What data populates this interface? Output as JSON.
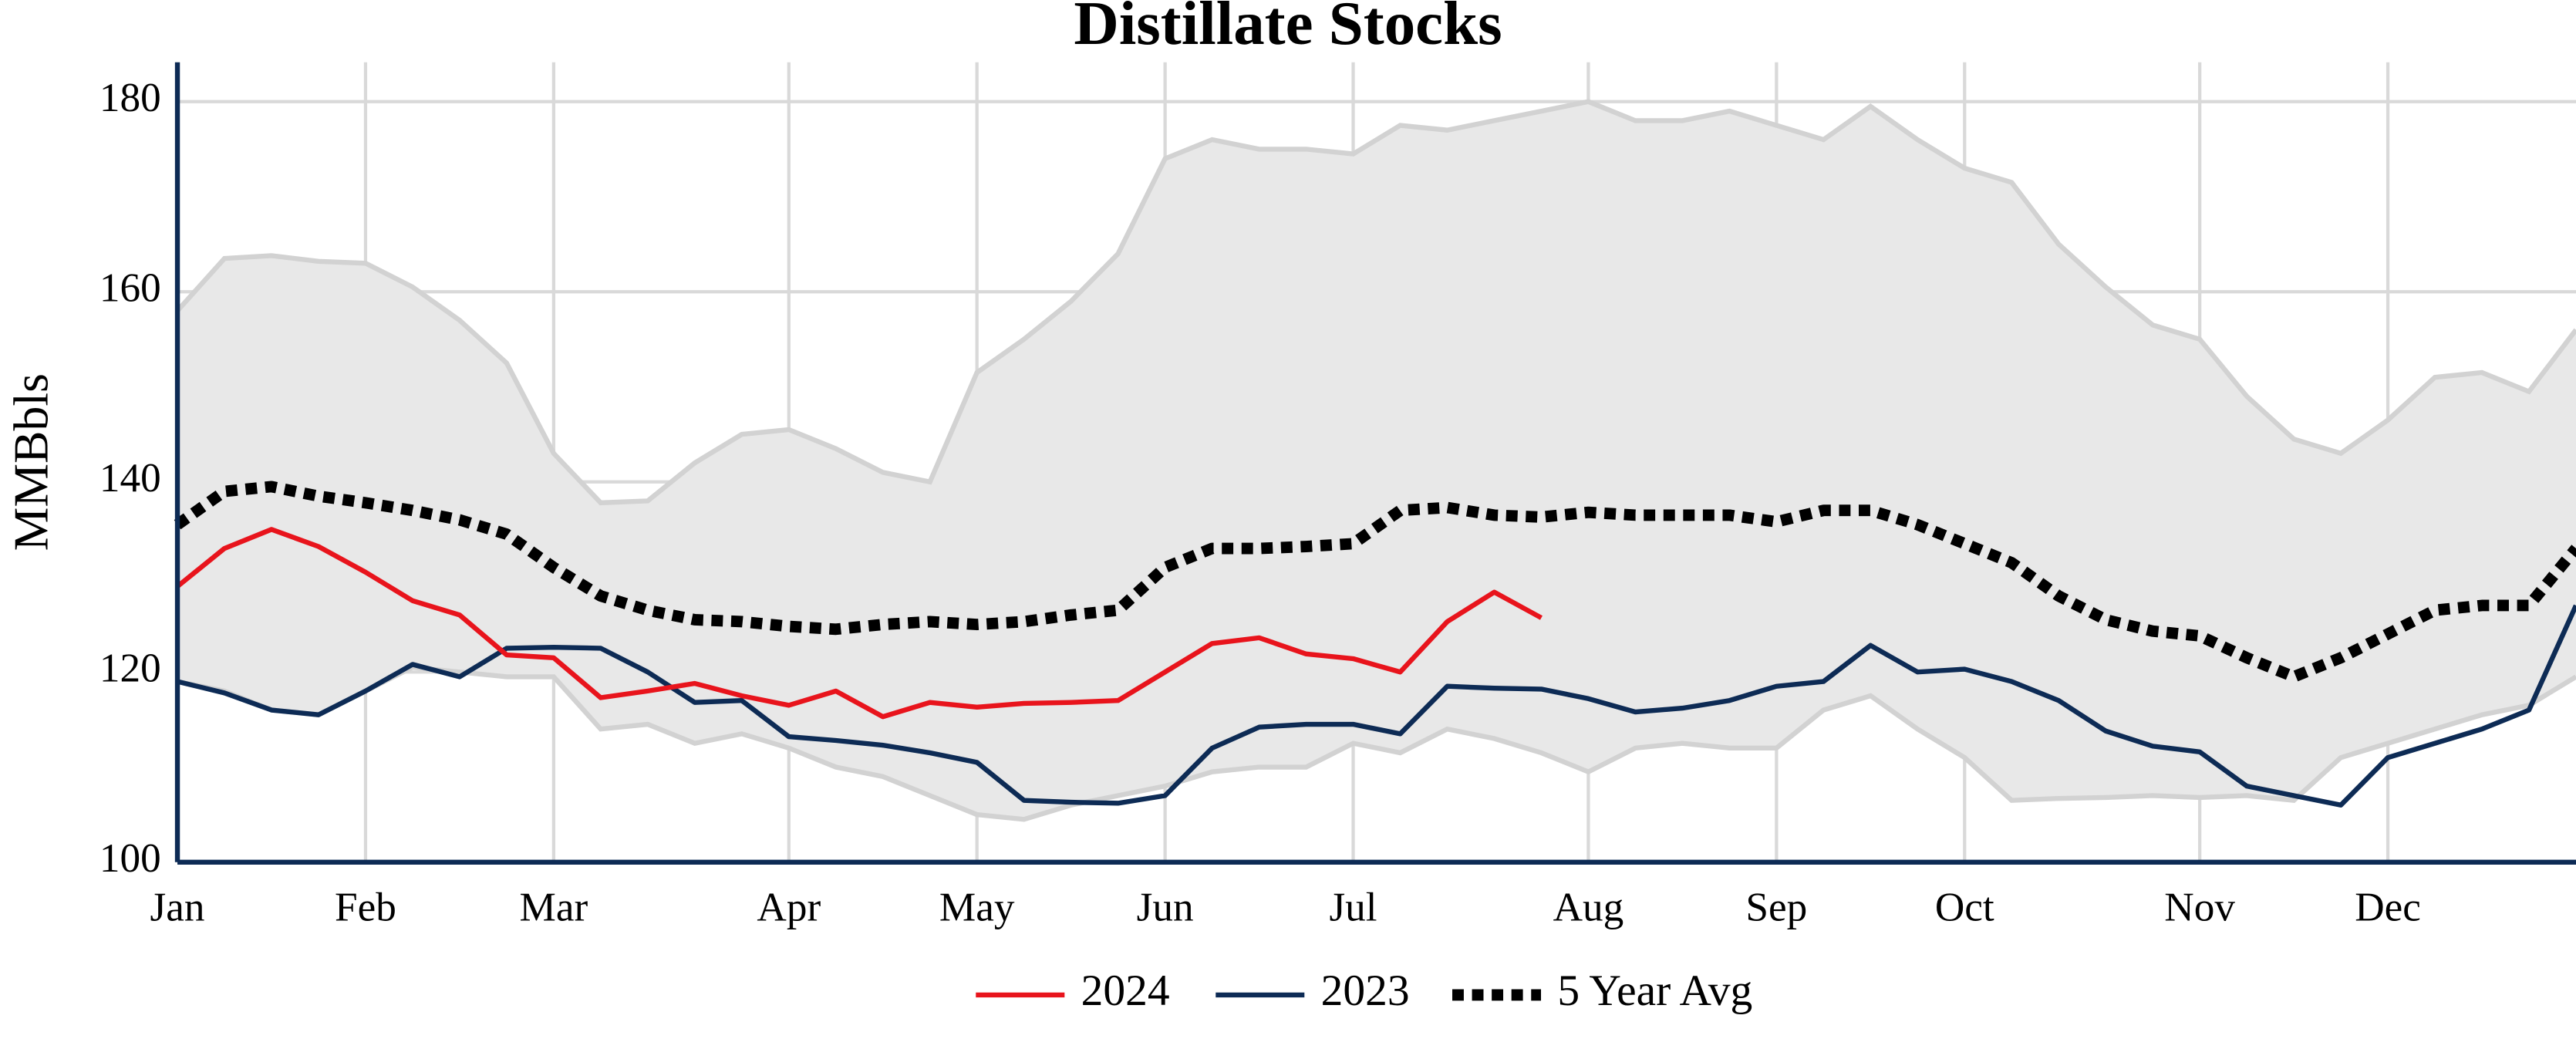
{
  "chart_data": {
    "type": "line",
    "title": "Distillate Stocks",
    "y_label": "MMBbls",
    "categories": [
      "Jan",
      null,
      null,
      null,
      "Feb",
      null,
      null,
      null,
      "Mar",
      null,
      null,
      null,
      null,
      "Apr",
      null,
      null,
      null,
      "May",
      null,
      null,
      null,
      "Jun",
      null,
      null,
      null,
      "Jul",
      null,
      null,
      null,
      null,
      "Aug",
      null,
      null,
      null,
      "Sep",
      null,
      null,
      null,
      "Oct",
      null,
      null,
      null,
      null,
      "Nov",
      null,
      null,
      null,
      "Dec",
      null,
      null,
      null,
      null
    ],
    "ylim": [
      100,
      180
    ],
    "yticks": [
      100,
      120,
      140,
      160,
      180
    ],
    "grid": true,
    "legend": "bottom",
    "range": {
      "color": "#e8e8e8",
      "line_color": "#d2d2d2",
      "max": [
        158,
        163.5,
        163.8,
        163.2,
        163,
        160.5,
        157,
        152.5,
        143,
        137.8,
        138,
        142,
        145,
        145.5,
        143.5,
        141,
        140,
        151.5,
        155,
        159,
        164,
        174,
        176,
        175,
        175,
        174.5,
        177.5,
        177,
        178,
        179,
        180,
        178,
        178,
        179,
        177.5,
        176,
        179.5,
        176,
        173,
        171.5,
        165,
        160.5,
        156.5,
        155,
        149,
        144.5,
        143,
        146.5,
        151,
        151.5,
        149.5,
        156
      ],
      "min": [
        119,
        118,
        116,
        115.5,
        118,
        120.5,
        120,
        119.5,
        119.5,
        114,
        114.5,
        112.5,
        113.5,
        112,
        110,
        109,
        107,
        105,
        104.5,
        106,
        107,
        108,
        109.5,
        110,
        110,
        112.5,
        111.5,
        114,
        113,
        111.5,
        109.5,
        112,
        112.5,
        112,
        112,
        116,
        117.5,
        114,
        111,
        106.5,
        106.7,
        106.8,
        107,
        106.8,
        107,
        106.5,
        111,
        112.5,
        114,
        115.5,
        116.5,
        119.5
      ]
    },
    "series": [
      {
        "name": "2024",
        "color": "#e8141c",
        "style": "solid",
        "values": [
          129,
          133,
          135,
          133.2,
          130.5,
          127.5,
          126,
          121.8,
          121.5,
          117.3,
          118,
          118.8,
          117.5,
          116.5,
          118,
          115.3,
          116.8,
          116.3,
          116.7,
          116.8,
          117,
          120,
          123,
          123.6,
          121.9,
          121.4,
          120,
          125.3,
          128.4,
          125.7,
          null,
          null,
          null,
          null,
          null,
          null,
          null,
          null,
          null,
          null,
          null,
          null,
          null,
          null,
          null,
          null,
          null,
          null,
          null,
          null,
          null,
          null
        ]
      },
      {
        "name": "2023",
        "color": "#0d2b55",
        "style": "solid",
        "values": [
          119,
          117.8,
          116,
          115.5,
          118,
          120.8,
          119.5,
          122.5,
          122.6,
          122.5,
          120,
          116.8,
          117,
          113.2,
          112.8,
          112.3,
          111.5,
          110.5,
          106.5,
          106.3,
          106.2,
          107,
          112,
          114.2,
          114.5,
          114.5,
          113.5,
          118.5,
          118.3,
          118.2,
          117.2,
          115.8,
          116.2,
          117,
          118.5,
          119,
          122.8,
          120,
          120.3,
          119,
          117,
          113.8,
          112.2,
          111.6,
          108,
          107,
          106,
          111,
          112.5,
          114,
          116,
          127
        ]
      },
      {
        "name": "5 Year Avg",
        "color": "#000000",
        "style": "dotted",
        "values": [
          135.5,
          139,
          139.5,
          138.5,
          137.8,
          137,
          136,
          134.5,
          131,
          128,
          126.5,
          125.5,
          125.3,
          124.8,
          124.5,
          125,
          125.3,
          125,
          125.3,
          126,
          126.5,
          131,
          133,
          133,
          133.2,
          133.5,
          137,
          137.3,
          136.5,
          136.3,
          136.8,
          136.5,
          136.5,
          136.5,
          135.8,
          137,
          137,
          135.5,
          133.5,
          131.5,
          128,
          125.5,
          124.3,
          123.8,
          121.5,
          119.5,
          121.5,
          124,
          126.5,
          127,
          127,
          133
        ]
      }
    ]
  }
}
